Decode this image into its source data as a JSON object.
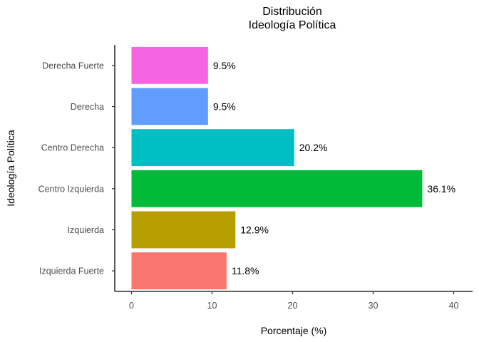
{
  "chart_data": {
    "type": "bar",
    "orientation": "horizontal",
    "title_lines": [
      "Distribución",
      "Ideología Política"
    ],
    "xlabel": "Porcentaje (%)",
    "ylabel": "Ideología Política",
    "xlim": [
      0,
      40
    ],
    "xticks": [
      0,
      10,
      20,
      30,
      40
    ],
    "grid": false,
    "legend": "none",
    "categories": [
      "Izquierda Fuerte",
      "Izquierda",
      "Centro Izquierda",
      "Centro Derecha",
      "Derecha",
      "Derecha Fuerte"
    ],
    "values": [
      11.8,
      12.9,
      36.1,
      20.2,
      9.5,
      9.5
    ],
    "data_labels": [
      "11.8%",
      "12.9%",
      "36.1%",
      "20.2%",
      "9.5%",
      "9.5%"
    ],
    "colors": [
      "#F8766D",
      "#B79F00",
      "#00BA38",
      "#00BFC4",
      "#619CFF",
      "#F564E3"
    ]
  }
}
